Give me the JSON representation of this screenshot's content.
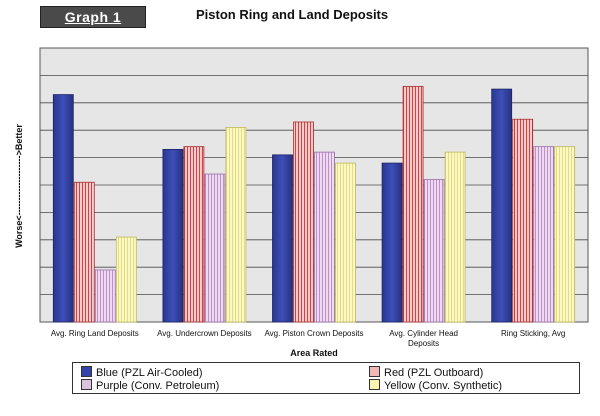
{
  "header": {
    "badge": "Graph 1"
  },
  "chart_data": {
    "type": "bar",
    "title": "Piston Ring and Land Deposits",
    "xlabel": "Area Rated",
    "ylabel": "Worse<-------------------->Better",
    "categories": [
      "Avg. Ring Land Deposits",
      "Avg. Undercrown Deposits",
      "Avg. Piston Crown Deposits",
      "Avg. Cylinder Head Deposits",
      "Ring Sticking, Avg"
    ],
    "ylim": [
      0,
      10
    ],
    "grid": true,
    "legend_position": "bottom",
    "series": [
      {
        "name": "Blue (PZL Air-Cooled)",
        "color": "#3344aa",
        "values": [
          8.3,
          6.3,
          6.1,
          5.8,
          8.5
        ]
      },
      {
        "name": "Red (PZL Outboard)",
        "color": "#f2b8b8",
        "values": [
          5.1,
          6.4,
          7.3,
          8.6,
          7.4
        ]
      },
      {
        "name": "Purple (Conv. Petroleum)",
        "color": "#dcc2e0",
        "values": [
          1.9,
          5.4,
          6.2,
          5.2,
          6.4
        ]
      },
      {
        "name": "Yellow (Conv. Synthetic)",
        "color": "#f9f5b0",
        "values": [
          3.1,
          7.1,
          5.8,
          6.2,
          6.4
        ]
      }
    ]
  }
}
